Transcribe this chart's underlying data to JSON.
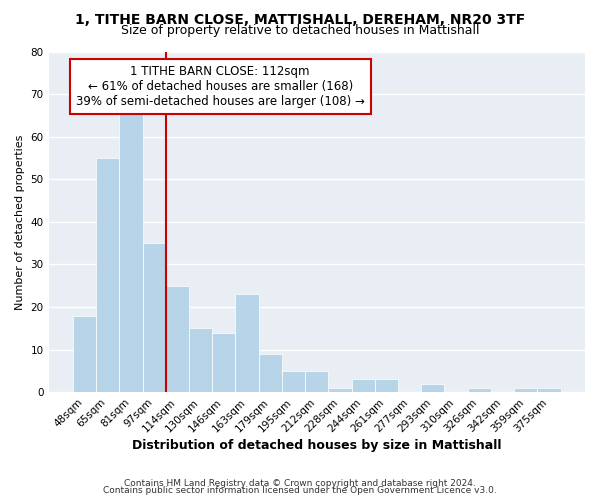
{
  "title": "1, TITHE BARN CLOSE, MATTISHALL, DEREHAM, NR20 3TF",
  "subtitle": "Size of property relative to detached houses in Mattishall",
  "xlabel": "Distribution of detached houses by size in Mattishall",
  "ylabel": "Number of detached properties",
  "bar_labels": [
    "48sqm",
    "65sqm",
    "81sqm",
    "97sqm",
    "114sqm",
    "130sqm",
    "146sqm",
    "163sqm",
    "179sqm",
    "195sqm",
    "212sqm",
    "228sqm",
    "244sqm",
    "261sqm",
    "277sqm",
    "293sqm",
    "310sqm",
    "326sqm",
    "342sqm",
    "359sqm",
    "375sqm"
  ],
  "bar_values": [
    18,
    55,
    66,
    35,
    25,
    15,
    14,
    23,
    9,
    5,
    5,
    1,
    3,
    3,
    0,
    2,
    0,
    1,
    0,
    1,
    1
  ],
  "bar_color": "#b8d4e8",
  "property_line_label": "1 TITHE BARN CLOSE: 112sqm",
  "annotation_line1": "← 61% of detached houses are smaller (168)",
  "annotation_line2": "39% of semi-detached houses are larger (108) →",
  "annotation_box_color": "#ffffff",
  "annotation_box_edge": "#cc0000",
  "property_line_color": "#cc0000",
  "property_line_x": 3.5,
  "ylim": [
    0,
    80
  ],
  "yticks": [
    0,
    10,
    20,
    30,
    40,
    50,
    60,
    70,
    80
  ],
  "footer1": "Contains HM Land Registry data © Crown copyright and database right 2024.",
  "footer2": "Contains public sector information licensed under the Open Government Licence v3.0.",
  "background_color": "#ffffff",
  "plot_background": "#e8eef4",
  "grid_color": "#ffffff",
  "title_fontsize": 10,
  "subtitle_fontsize": 9,
  "ylabel_fontsize": 8,
  "xlabel_fontsize": 9,
  "tick_fontsize": 7.5,
  "footer_fontsize": 6.5
}
